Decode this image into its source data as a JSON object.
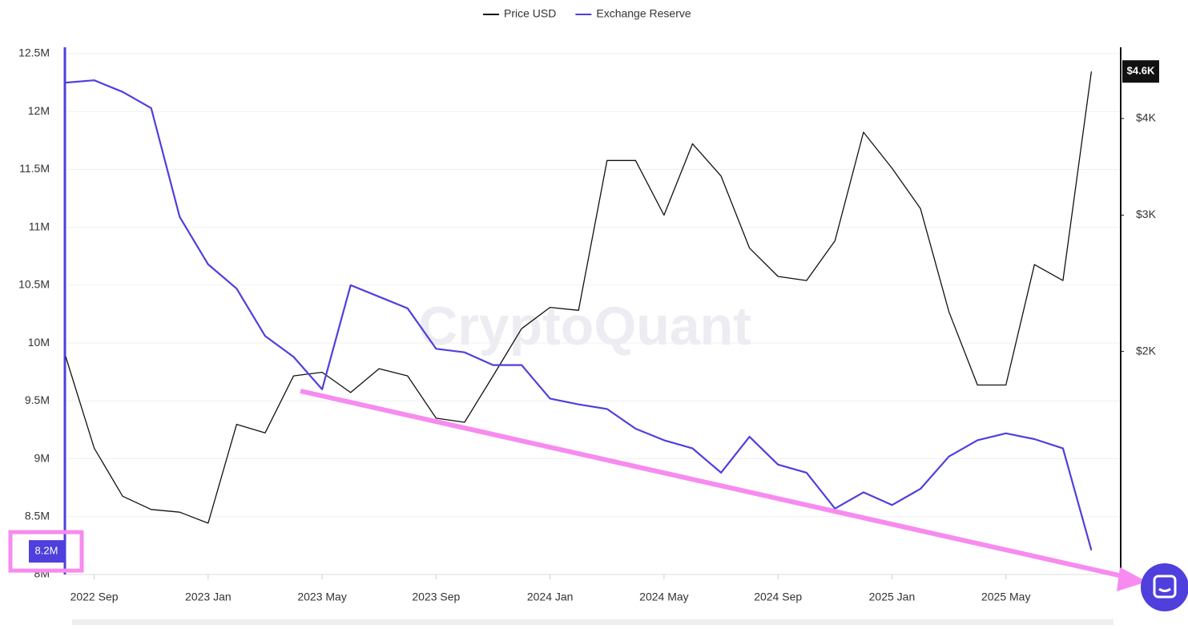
{
  "chart_data": {
    "type": "line",
    "watermark": "CryptoQuant",
    "legend_position": "top",
    "x": [
      "2022-08",
      "2022-09",
      "2022-10",
      "2022-11",
      "2022-12",
      "2023-01",
      "2023-02",
      "2023-03",
      "2023-04",
      "2023-05",
      "2023-06",
      "2023-07",
      "2023-08",
      "2023-09",
      "2023-10",
      "2023-11",
      "2023-12",
      "2024-01",
      "2024-02",
      "2024-03",
      "2024-04",
      "2024-05",
      "2024-06",
      "2024-07",
      "2024-08",
      "2024-09",
      "2024-10",
      "2024-11",
      "2024-12",
      "2025-01",
      "2025-02",
      "2025-03",
      "2025-04",
      "2025-05",
      "2025-06",
      "2025-07",
      "2025-08"
    ],
    "xlim": [
      "2022-08",
      "2025-09"
    ],
    "xticks": [
      {
        "value": "2022-09",
        "label": "2022 Sep"
      },
      {
        "value": "2023-01",
        "label": "2023 Jan"
      },
      {
        "value": "2023-05",
        "label": "2023 May"
      },
      {
        "value": "2023-09",
        "label": "2023 Sep"
      },
      {
        "value": "2024-01",
        "label": "2024 Jan"
      },
      {
        "value": "2024-05",
        "label": "2024 May"
      },
      {
        "value": "2024-09",
        "label": "2024 Sep"
      },
      {
        "value": "2025-01",
        "label": "2025 Jan"
      },
      {
        "value": "2025-05",
        "label": "2025 May"
      }
    ],
    "ylim": [
      8000000,
      12500000
    ],
    "yticks": [
      {
        "value": 8000000,
        "label": "8M"
      },
      {
        "value": 8500000,
        "label": "8.5M"
      },
      {
        "value": 9000000,
        "label": "9M"
      },
      {
        "value": 9500000,
        "label": "9.5M"
      },
      {
        "value": 10000000,
        "label": "10M"
      },
      {
        "value": 10500000,
        "label": "10.5M"
      },
      {
        "value": 11000000,
        "label": "11M"
      },
      {
        "value": 11500000,
        "label": "11.5M"
      },
      {
        "value": 12000000,
        "label": "12M"
      },
      {
        "value": 12500000,
        "label": "12.5M"
      }
    ],
    "y2lim": [
      1030,
      4850
    ],
    "y2_scale": "log",
    "y2ticks": [
      {
        "value": 2000,
        "label": "$2K"
      },
      {
        "value": 3000,
        "label": "$3K"
      },
      {
        "value": 4000,
        "label": "$4K"
      }
    ],
    "grid": true,
    "series": [
      {
        "name": "Price USD",
        "color": "#111111",
        "axis": "y2",
        "values": [
          1970,
          1500,
          1300,
          1250,
          1240,
          1200,
          1610,
          1570,
          1860,
          1880,
          1770,
          1900,
          1860,
          1640,
          1620,
          1860,
          2140,
          2280,
          2260,
          3530,
          3530,
          3000,
          3710,
          3370,
          2720,
          2500,
          2470,
          2780,
          3840,
          3450,
          3060,
          2250,
          1810,
          1810,
          2590,
          2470,
          4600
        ]
      },
      {
        "name": "Exchange Reserve",
        "color": "#4f3fdc",
        "axis": "y",
        "values": [
          12250000,
          12270000,
          12170000,
          12030000,
          11090000,
          10680000,
          10470000,
          10060000,
          9880000,
          9600000,
          10500000,
          10400000,
          10300000,
          9950000,
          9920000,
          9810000,
          9810000,
          9520000,
          9470000,
          9430000,
          9260000,
          9160000,
          9090000,
          8880000,
          9190000,
          8950000,
          8880000,
          8570000,
          8710000,
          8600000,
          8740000,
          9020000,
          9160000,
          9220000,
          9170000,
          9090000,
          8210000
        ]
      }
    ],
    "current_values": [
      {
        "axis": "y",
        "value": 8200000,
        "label": "8.2M"
      },
      {
        "axis": "y2",
        "value": 4600,
        "label": "$4.6K"
      }
    ]
  }
}
